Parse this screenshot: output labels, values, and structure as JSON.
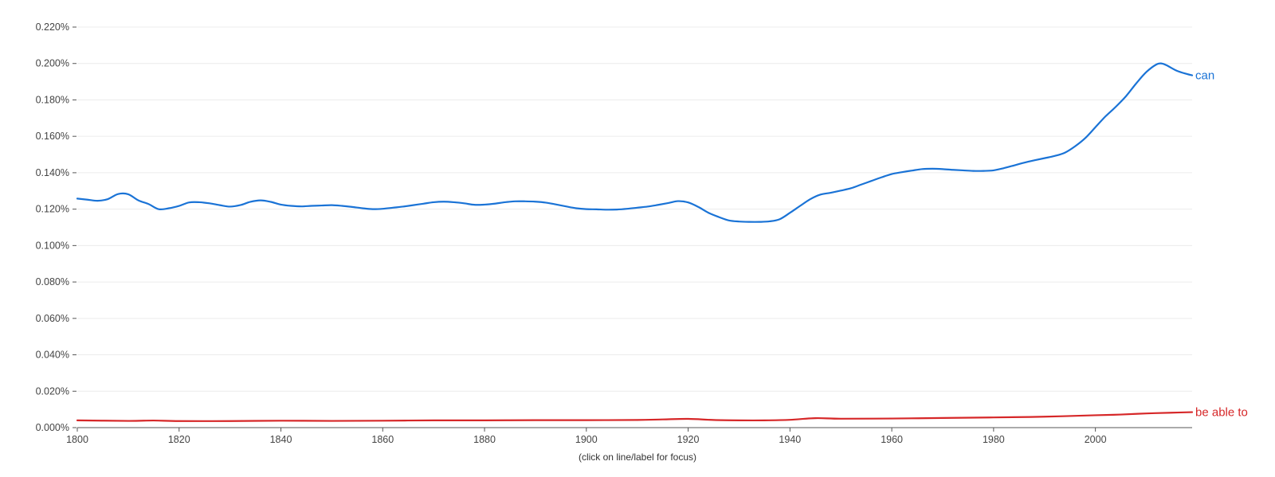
{
  "chart_data": {
    "type": "line",
    "title": "",
    "xlabel": "",
    "ylabel": "",
    "xlim": [
      1800,
      2019
    ],
    "ylim": [
      0,
      0.22
    ],
    "y_ticks": [
      "0.000%",
      "0.020%",
      "0.040%",
      "0.060%",
      "0.080%",
      "0.100%",
      "0.120%",
      "0.140%",
      "0.160%",
      "0.180%",
      "0.200%",
      "0.220%"
    ],
    "y_tick_values": [
      0,
      0.02,
      0.04,
      0.06,
      0.08,
      0.1,
      0.12,
      0.14,
      0.16,
      0.18,
      0.2,
      0.22
    ],
    "x_ticks": [
      "1800",
      "1820",
      "1840",
      "1860",
      "1880",
      "1900",
      "1920",
      "1940",
      "1960",
      "1980",
      "2000"
    ],
    "x_tick_values": [
      1800,
      1820,
      1840,
      1860,
      1880,
      1900,
      1920,
      1940,
      1960,
      1980,
      2000
    ],
    "grid": true,
    "legend": "inline labels at line ends",
    "series": [
      {
        "name": "can",
        "color": "#1a73d6",
        "points": [
          [
            1800,
            0.1258
          ],
          [
            1802,
            0.1252
          ],
          [
            1804,
            0.1246
          ],
          [
            1806,
            0.1255
          ],
          [
            1808,
            0.1283
          ],
          [
            1810,
            0.1282
          ],
          [
            1812,
            0.1248
          ],
          [
            1814,
            0.1228
          ],
          [
            1816,
            0.12
          ],
          [
            1818,
            0.1205
          ],
          [
            1820,
            0.1218
          ],
          [
            1822,
            0.1237
          ],
          [
            1824,
            0.1238
          ],
          [
            1826,
            0.1232
          ],
          [
            1828,
            0.1222
          ],
          [
            1830,
            0.1214
          ],
          [
            1832,
            0.1222
          ],
          [
            1834,
            0.124
          ],
          [
            1836,
            0.1248
          ],
          [
            1838,
            0.124
          ],
          [
            1840,
            0.1225
          ],
          [
            1842,
            0.1218
          ],
          [
            1844,
            0.1215
          ],
          [
            1846,
            0.1218
          ],
          [
            1848,
            0.122
          ],
          [
            1850,
            0.1222
          ],
          [
            1852,
            0.1218
          ],
          [
            1854,
            0.1212
          ],
          [
            1856,
            0.1205
          ],
          [
            1858,
            0.12
          ],
          [
            1860,
            0.1202
          ],
          [
            1862,
            0.1208
          ],
          [
            1864,
            0.1214
          ],
          [
            1866,
            0.1222
          ],
          [
            1868,
            0.123
          ],
          [
            1870,
            0.1238
          ],
          [
            1872,
            0.1241
          ],
          [
            1874,
            0.1238
          ],
          [
            1876,
            0.1232
          ],
          [
            1878,
            0.1224
          ],
          [
            1880,
            0.1225
          ],
          [
            1882,
            0.123
          ],
          [
            1884,
            0.1238
          ],
          [
            1886,
            0.1243
          ],
          [
            1888,
            0.1243
          ],
          [
            1890,
            0.1241
          ],
          [
            1892,
            0.1236
          ],
          [
            1894,
            0.1226
          ],
          [
            1896,
            0.1215
          ],
          [
            1898,
            0.1205
          ],
          [
            1900,
            0.12
          ],
          [
            1902,
            0.1199
          ],
          [
            1904,
            0.1197
          ],
          [
            1906,
            0.1198
          ],
          [
            1908,
            0.1202
          ],
          [
            1910,
            0.1208
          ],
          [
            1912,
            0.1214
          ],
          [
            1914,
            0.1223
          ],
          [
            1916,
            0.1233
          ],
          [
            1918,
            0.1244
          ],
          [
            1920,
            0.1237
          ],
          [
            1922,
            0.1212
          ],
          [
            1924,
            0.118
          ],
          [
            1926,
            0.1157
          ],
          [
            1928,
            0.1138
          ],
          [
            1930,
            0.1132
          ],
          [
            1932,
            0.113
          ],
          [
            1934,
            0.113
          ],
          [
            1936,
            0.1133
          ],
          [
            1938,
            0.1145
          ],
          [
            1940,
            0.118
          ],
          [
            1942,
            0.1218
          ],
          [
            1944,
            0.1255
          ],
          [
            1946,
            0.128
          ],
          [
            1948,
            0.129
          ],
          [
            1950,
            0.1302
          ],
          [
            1952,
            0.1315
          ],
          [
            1954,
            0.1335
          ],
          [
            1956,
            0.1355
          ],
          [
            1958,
            0.1375
          ],
          [
            1960,
            0.1393
          ],
          [
            1962,
            0.1403
          ],
          [
            1964,
            0.1412
          ],
          [
            1966,
            0.142
          ],
          [
            1968,
            0.1422
          ],
          [
            1970,
            0.142
          ],
          [
            1972,
            0.1416
          ],
          [
            1974,
            0.1413
          ],
          [
            1976,
            0.141
          ],
          [
            1978,
            0.141
          ],
          [
            1980,
            0.1413
          ],
          [
            1982,
            0.1425
          ],
          [
            1984,
            0.144
          ],
          [
            1986,
            0.1455
          ],
          [
            1988,
            0.1468
          ],
          [
            1990,
            0.148
          ],
          [
            1992,
            0.1492
          ],
          [
            1994,
            0.151
          ],
          [
            1996,
            0.1545
          ],
          [
            1998,
            0.159
          ],
          [
            2000,
            0.165
          ],
          [
            2002,
            0.171
          ],
          [
            2004,
            0.1762
          ],
          [
            2006,
            0.182
          ],
          [
            2008,
            0.189
          ],
          [
            2010,
            0.1953
          ],
          [
            2012,
            0.1995
          ],
          [
            2013,
            0.2
          ],
          [
            2014,
            0.199
          ],
          [
            2016,
            0.196
          ],
          [
            2018,
            0.1942
          ],
          [
            2019,
            0.1935
          ]
        ]
      },
      {
        "name": "be able to",
        "color": "#d62728",
        "points": [
          [
            1800,
            0.004
          ],
          [
            1810,
            0.0037
          ],
          [
            1815,
            0.0039
          ],
          [
            1820,
            0.0036
          ],
          [
            1830,
            0.0036
          ],
          [
            1840,
            0.0038
          ],
          [
            1850,
            0.0037
          ],
          [
            1860,
            0.0038
          ],
          [
            1870,
            0.004
          ],
          [
            1880,
            0.004
          ],
          [
            1890,
            0.0041
          ],
          [
            1900,
            0.0041
          ],
          [
            1910,
            0.0042
          ],
          [
            1915,
            0.0045
          ],
          [
            1920,
            0.0048
          ],
          [
            1925,
            0.0042
          ],
          [
            1930,
            0.004
          ],
          [
            1935,
            0.004
          ],
          [
            1940,
            0.0043
          ],
          [
            1945,
            0.0052
          ],
          [
            1950,
            0.0049
          ],
          [
            1960,
            0.005
          ],
          [
            1970,
            0.0053
          ],
          [
            1980,
            0.0056
          ],
          [
            1990,
            0.006
          ],
          [
            2000,
            0.0068
          ],
          [
            2005,
            0.0072
          ],
          [
            2010,
            0.0078
          ],
          [
            2015,
            0.0082
          ],
          [
            2019,
            0.0085
          ]
        ]
      }
    ]
  },
  "footnote": "(click on line/label for focus)"
}
